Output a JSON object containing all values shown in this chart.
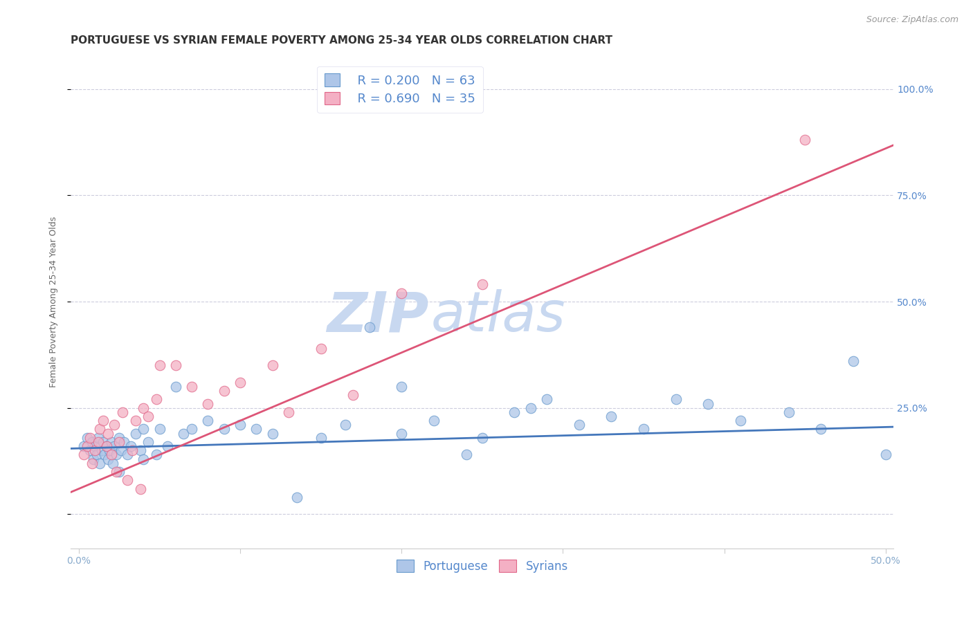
{
  "title": "PORTUGUESE VS SYRIAN FEMALE POVERTY AMONG 25-34 YEAR OLDS CORRELATION CHART",
  "source": "Source: ZipAtlas.com",
  "ylabel": "Female Poverty Among 25-34 Year Olds",
  "xlim": [
    -0.005,
    0.505
  ],
  "ylim": [
    -0.08,
    1.08
  ],
  "xtick_positions": [
    0.0,
    0.1,
    0.2,
    0.3,
    0.4,
    0.5
  ],
  "xtick_labels": [
    "0.0%",
    "",
    "",
    "",
    "",
    "50.0%"
  ],
  "ytick_positions": [
    0.0,
    0.25,
    0.5,
    0.75,
    1.0
  ],
  "ytick_labels": [
    "",
    "",
    "50.0%",
    "75.0%",
    "100.0%"
  ],
  "ytick_right_labels": [
    "",
    "25.0%",
    "50.0%",
    "75.0%",
    "100.0%"
  ],
  "portuguese_color": "#aec6e8",
  "portuguese_edge": "#6699cc",
  "syrian_color": "#f4b0c4",
  "syrian_edge": "#e06688",
  "portuguese_line_color": "#4477bb",
  "syrian_line_color": "#dd5577",
  "legend_text_color": "#5588cc",
  "legend_r1": "R = 0.200",
  "legend_n1": "N = 63",
  "legend_r2": "R = 0.690",
  "legend_n2": "N = 35",
  "watermark_zip": "ZIP",
  "watermark_atlas": "atlas",
  "watermark_color": "#c8d8f0",
  "portuguese_x": [
    0.003,
    0.005,
    0.007,
    0.008,
    0.009,
    0.01,
    0.011,
    0.012,
    0.013,
    0.014,
    0.015,
    0.016,
    0.017,
    0.018,
    0.019,
    0.02,
    0.021,
    0.022,
    0.023,
    0.025,
    0.026,
    0.028,
    0.03,
    0.032,
    0.035,
    0.038,
    0.04,
    0.043,
    0.048,
    0.05,
    0.055,
    0.06,
    0.065,
    0.07,
    0.08,
    0.09,
    0.1,
    0.11,
    0.12,
    0.135,
    0.15,
    0.165,
    0.18,
    0.2,
    0.22,
    0.24,
    0.25,
    0.27,
    0.29,
    0.31,
    0.33,
    0.35,
    0.37,
    0.39,
    0.41,
    0.44,
    0.46,
    0.48,
    0.5,
    0.2,
    0.28,
    0.04,
    0.025
  ],
  "portuguese_y": [
    0.16,
    0.18,
    0.15,
    0.17,
    0.13,
    0.16,
    0.14,
    0.18,
    0.12,
    0.15,
    0.17,
    0.14,
    0.16,
    0.13,
    0.15,
    0.17,
    0.12,
    0.16,
    0.14,
    0.18,
    0.15,
    0.17,
    0.14,
    0.16,
    0.19,
    0.15,
    0.13,
    0.17,
    0.14,
    0.2,
    0.16,
    0.3,
    0.19,
    0.2,
    0.22,
    0.2,
    0.21,
    0.2,
    0.19,
    0.04,
    0.18,
    0.21,
    0.44,
    0.19,
    0.22,
    0.14,
    0.18,
    0.24,
    0.27,
    0.21,
    0.23,
    0.2,
    0.27,
    0.26,
    0.22,
    0.24,
    0.2,
    0.36,
    0.14,
    0.3,
    0.25,
    0.2,
    0.1
  ],
  "syrian_x": [
    0.003,
    0.005,
    0.007,
    0.008,
    0.01,
    0.012,
    0.013,
    0.015,
    0.017,
    0.018,
    0.02,
    0.022,
    0.023,
    0.025,
    0.027,
    0.03,
    0.033,
    0.035,
    0.038,
    0.04,
    0.043,
    0.048,
    0.05,
    0.06,
    0.07,
    0.08,
    0.09,
    0.1,
    0.12,
    0.13,
    0.15,
    0.17,
    0.2,
    0.25,
    0.45
  ],
  "syrian_y": [
    0.14,
    0.16,
    0.18,
    0.12,
    0.15,
    0.17,
    0.2,
    0.22,
    0.16,
    0.19,
    0.14,
    0.21,
    0.1,
    0.17,
    0.24,
    0.08,
    0.15,
    0.22,
    0.06,
    0.25,
    0.23,
    0.27,
    0.35,
    0.35,
    0.3,
    0.26,
    0.29,
    0.31,
    0.35,
    0.24,
    0.39,
    0.28,
    0.52,
    0.54,
    0.88
  ],
  "portuguese_slope": 0.1,
  "portuguese_intercept": 0.155,
  "syrian_slope": 1.6,
  "syrian_intercept": 0.06,
  "background_color": "#ffffff",
  "grid_color": "#ccccdd",
  "title_fontsize": 11,
  "axis_label_fontsize": 9,
  "tick_fontsize": 10,
  "legend_fontsize": 13
}
